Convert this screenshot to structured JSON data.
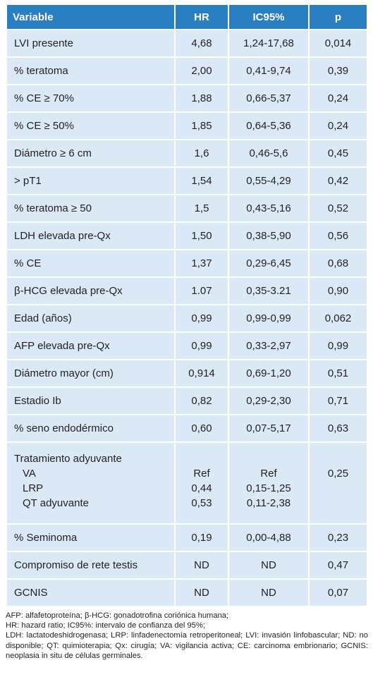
{
  "table": {
    "headers": [
      "Variable",
      "HR",
      "IC95%",
      "p"
    ],
    "rows": [
      {
        "variable": "LVI presente",
        "hr": "4,68",
        "ic": "1,24-17,68",
        "p": "0,014"
      },
      {
        "variable": "% teratoma",
        "hr": "2,00",
        "ic": "0,41-9,74",
        "p": "0,39"
      },
      {
        "variable": "% CE ≥ 70%",
        "hr": "1,88",
        "ic": "0,66-5,37",
        "p": "0,24"
      },
      {
        "variable": "% CE ≥ 50%",
        "hr": "1,85",
        "ic": "0,64-5,36",
        "p": "0,24"
      },
      {
        "variable": "Diámetro ≥ 6 cm",
        "hr": "1,6",
        "ic": "0,46-5,6",
        "p": "0,45"
      },
      {
        "variable": "> pT1",
        "hr": "1,54",
        "ic": "0,55-4,29",
        "p": "0,42"
      },
      {
        "variable": "% teratoma ≥ 50",
        "hr": "1,5",
        "ic": "0,43-5,16",
        "p": "0,52"
      },
      {
        "variable": "LDH elevada pre-Qx",
        "hr": "1,50",
        "ic": "0,38-5,90",
        "p": "0,56"
      },
      {
        "variable": "% CE",
        "hr": "1,37",
        "ic": "0,29-6,45",
        "p": "0,68"
      },
      {
        "variable": "β-HCG elevada pre-Qx",
        "hr": "1.07",
        "ic": "0,35-3.21",
        "p": "0,90"
      },
      {
        "variable": "Edad (años)",
        "hr": "0,99",
        "ic": "0,99-0,99",
        "p": "0,062"
      },
      {
        "variable": "AFP elevada pre-Qx",
        "hr": "0,99",
        "ic": "0,33-2,97",
        "p": "0,99"
      },
      {
        "variable": "Diámetro mayor (cm)",
        "hr": "0,914",
        "ic": "0,69-1,20",
        "p": "0,51"
      },
      {
        "variable": "Estadio Ib",
        "hr": "0,82",
        "ic": "0,29-2,30",
        "p": "0,71"
      },
      {
        "variable": "% seno endodérmico",
        "hr": "0,60",
        "ic": "0,07-5,17",
        "p": "0,63"
      }
    ],
    "treatment": {
      "title": "Tratamiento adyuvante",
      "p": "0,25",
      "subrows": [
        {
          "label": "VA",
          "hr": "Ref",
          "ic": "Ref"
        },
        {
          "label": "LRP",
          "hr": "0,44",
          "ic": "0,15-1,25"
        },
        {
          "label": "QT adyuvante",
          "hr": "0,53",
          "ic": "0,11-2,38"
        }
      ]
    },
    "tail_rows": [
      {
        "variable": "% Seminoma",
        "hr": "0,19",
        "ic": "0,00-4,88",
        "p": "0,23"
      },
      {
        "variable": "Compromiso de rete testis",
        "hr": "ND",
        "ic": "ND",
        "p": "0,47"
      },
      {
        "variable": "GCNIS",
        "hr": "ND",
        "ic": "ND",
        "p": "0,07"
      }
    ]
  },
  "footnote": {
    "lines": [
      "AFP: alfafetoproteína; β-HCG: gonadotrofina coriónica humana;",
      "HR:  hazard ratio; IC95%: intervalo de confianza del 95%;",
      "LDH: lactatodeshidrogenasa; LRP: linfadenectomía retroperitoneal; LVI: invasión linfobascular; ND: no disponible; QT: quimioterapia; Qx: cirugía; VA: vigilancia activa; CE: carcinoma embrionario; GCNIS: neoplasia in situ de células germinales."
    ]
  }
}
